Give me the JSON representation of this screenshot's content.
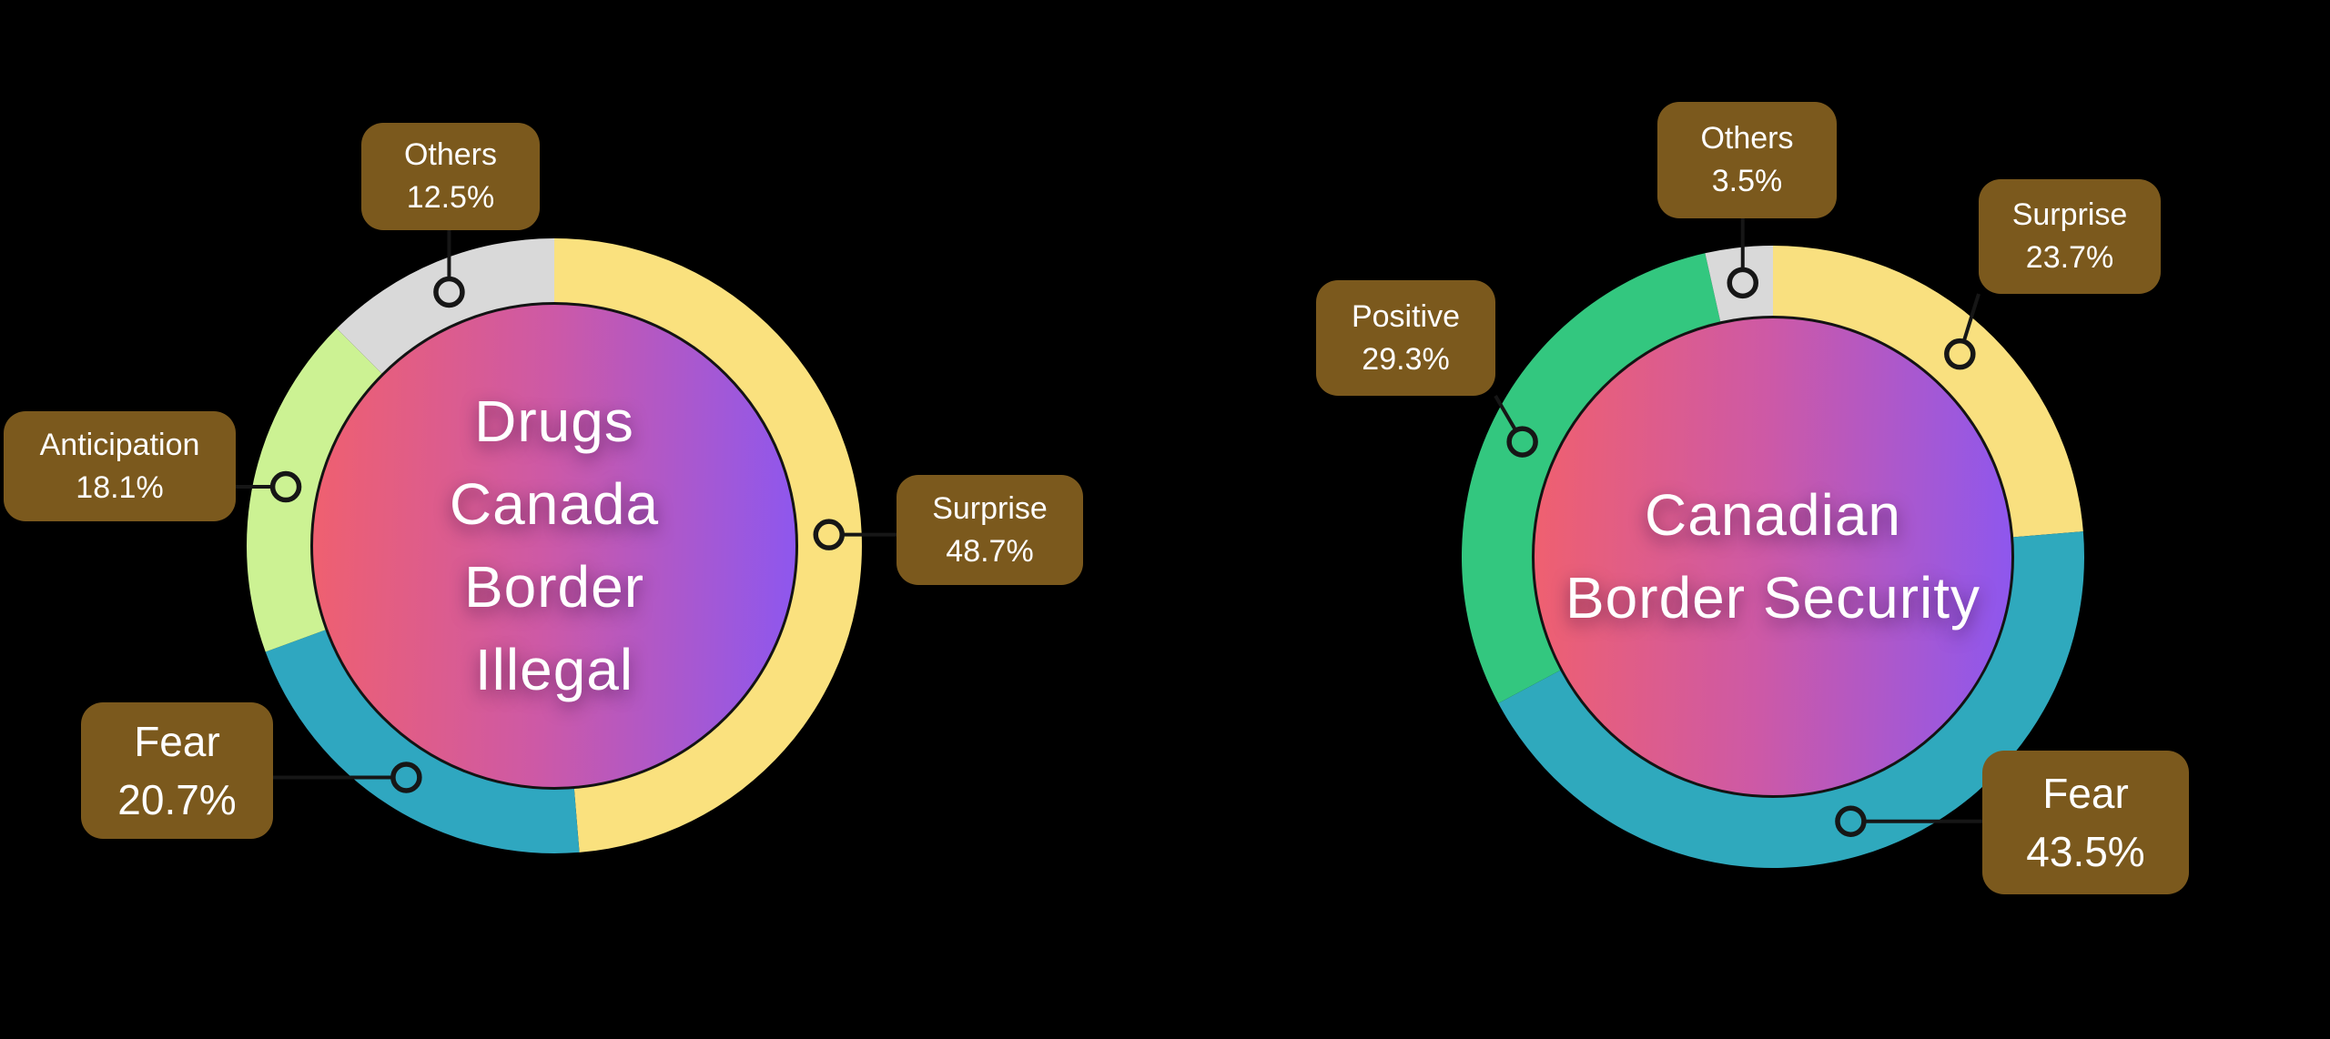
{
  "background": "#000000",
  "styles": {
    "label_box_bg": "#7b591d",
    "label_text_color": "#ffffff",
    "connector_color": "#161616",
    "center_disc_gradient": [
      "#f0606e",
      "#cd59a6",
      "#8c57f0"
    ],
    "center_text_color": "#ffffff"
  },
  "chart_data": [
    {
      "type": "pie",
      "subtype": "donut",
      "title": "Drugs Canada Border Illegal",
      "center_lines": [
        "Drugs",
        "Canada",
        "Border",
        "Illegal"
      ],
      "start_angle_deg": 0,
      "direction": "clockwise",
      "legend_position": "callout-labels",
      "grid": false,
      "segments": [
        {
          "label": "Surprise",
          "value_pct": 48.7,
          "display": "48.7%",
          "color": "#fae17e",
          "emphasis": false
        },
        {
          "label": "Fear",
          "value_pct": 20.7,
          "display": "20.7%",
          "color": "#2fa7c0",
          "emphasis": true
        },
        {
          "label": "Anticipation",
          "value_pct": 18.1,
          "display": "18.1%",
          "color": "#ccf293",
          "emphasis": false
        },
        {
          "label": "Others",
          "value_pct": 12.5,
          "display": "12.5%",
          "color": "#d9d9d9",
          "emphasis": false
        }
      ]
    },
    {
      "type": "pie",
      "subtype": "donut",
      "title": "Canadian Border Security",
      "center_lines": [
        "Canadian",
        "Border Security"
      ],
      "start_angle_deg": 0,
      "direction": "clockwise",
      "legend_position": "callout-labels",
      "grid": false,
      "segments": [
        {
          "label": "Surprise",
          "value_pct": 23.7,
          "display": "23.7%",
          "color": "#f9e07f",
          "emphasis": false
        },
        {
          "label": "Fear",
          "value_pct": 43.5,
          "display": "43.5%",
          "color": "#2fa9bd",
          "emphasis": true
        },
        {
          "label": "Positive",
          "value_pct": 29.3,
          "display": "29.3%",
          "color": "#33c77f",
          "emphasis": false
        },
        {
          "label": "Others",
          "value_pct": 3.5,
          "display": "3.5%",
          "color": "#d9d9d9",
          "emphasis": false
        }
      ]
    }
  ]
}
